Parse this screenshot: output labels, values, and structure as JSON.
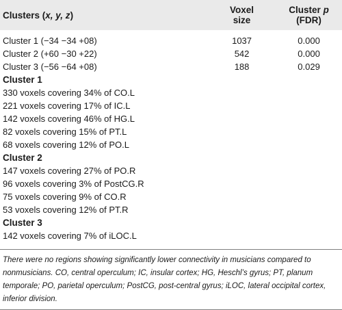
{
  "header": {
    "col1_prefix": "Clusters (",
    "col1_coords": "x, y, z",
    "col1_suffix": ")",
    "col2": "Voxel size",
    "col3_prefix": "Cluster ",
    "col3_p": "p",
    "col3_suffix": " (FDR)"
  },
  "clusters": [
    {
      "label": "Cluster 1 (−34 −34 +08)",
      "voxel_size": "1037",
      "p": "0.000"
    },
    {
      "label": "Cluster 2 (+60 −30 +22)",
      "voxel_size": "542",
      "p": "0.000"
    },
    {
      "label": "Cluster 3 (−56 −64 +08)",
      "voxel_size": "188",
      "p": "0.029"
    }
  ],
  "groups": [
    {
      "title": "Cluster 1",
      "items": [
        "330 voxels covering 34% of CO.L",
        "221 voxels covering 17% of IC.L",
        "142 voxels covering 46% of HG.L",
        "82 voxels covering 15% of PT.L",
        "68 voxels covering 12% of PO.L"
      ]
    },
    {
      "title": "Cluster 2",
      "items": [
        "147 voxels covering 27% of PO.R",
        "96 voxels covering 3% of PostCG.R",
        "75 voxels covering 9% of CO.R",
        "53 voxels covering 12% of PT.R"
      ]
    },
    {
      "title": "Cluster 3",
      "items": [
        "142 voxels covering 7% of iLOC.L"
      ]
    }
  ],
  "footnote": "There were no regions showing significantly lower connectivity in musicians compared to nonmusicians. CO, central operculum; IC, insular cortex; HG, Heschl’s gyrus; PT, planum temporale; PO, parietal operculum; PostCG, post-central gyrus; iLOC, lateral occipital cortex, inferior division."
}
